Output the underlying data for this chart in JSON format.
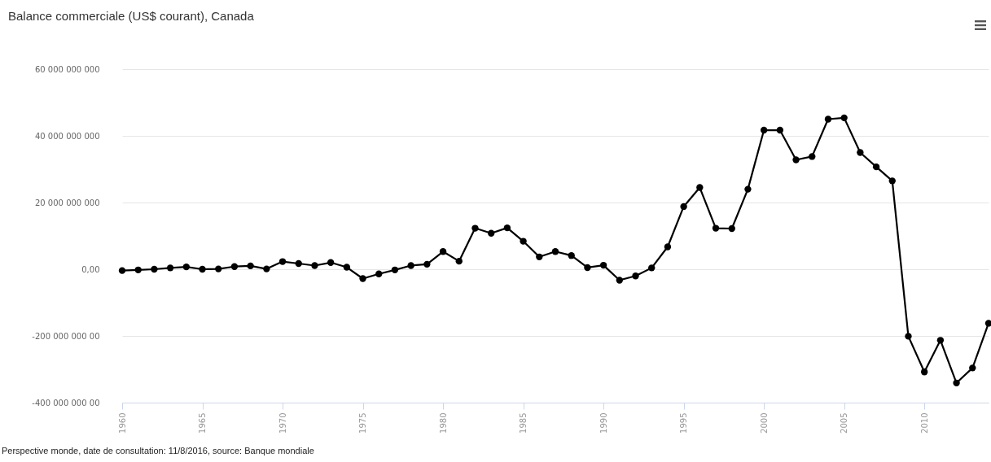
{
  "chart_data": {
    "type": "line",
    "title": "Balance commerciale (US$ courant), Canada",
    "annotations": [
      "Perspective monde, date de consultation: 11/8/2016, source: Banque mondiale"
    ],
    "x": [
      1960,
      1961,
      1962,
      1963,
      1964,
      1965,
      1966,
      1967,
      1968,
      1969,
      1970,
      1971,
      1972,
      1973,
      1974,
      1975,
      1976,
      1977,
      1978,
      1979,
      1980,
      1981,
      1982,
      1983,
      1984,
      1985,
      1986,
      1987,
      1988,
      1989,
      1990,
      1991,
      1992,
      1993,
      1994,
      1995,
      1996,
      1997,
      1998,
      1999,
      2000,
      2001,
      2002,
      2003,
      2004,
      2005,
      2006,
      2007,
      2008,
      2009,
      2010,
      2011,
      2012,
      2013,
      2014
    ],
    "series": [
      {
        "color": "#000000",
        "values": [
          -400000000,
          -200000000,
          0,
          400000000,
          700000000,
          0,
          100000000,
          800000000,
          1000000000,
          100000000,
          2300000000,
          1700000000,
          1100000000,
          2000000000,
          600000000,
          -2800000000,
          -1400000000,
          -200000000,
          1100000000,
          1500000000,
          5300000000,
          2400000000,
          12300000000,
          10800000000,
          12400000000,
          8400000000,
          3700000000,
          5300000000,
          4100000000,
          500000000,
          1200000000,
          -3300000000,
          -2000000000,
          400000000,
          6700000000,
          18800000000,
          24500000000,
          12300000000,
          12200000000,
          24000000000,
          41700000000,
          41700000000,
          32800000000,
          33800000000,
          45000000000,
          45400000000,
          35000000000,
          30700000000,
          26500000000,
          -20100000000,
          -30800000000,
          -21300000000,
          -34100000000,
          -29600000000,
          -16200000000
        ]
      }
    ],
    "xlim": [
      1960,
      2014
    ],
    "xticks": [
      1960,
      1965,
      1970,
      1975,
      1980,
      1985,
      1990,
      1995,
      2000,
      2005,
      2010
    ],
    "ylim": [
      -40000000000,
      60000000000
    ],
    "yticks": [
      {
        "value": -40000000000,
        "label": "-400 000 000 00"
      },
      {
        "value": -20000000000,
        "label": "-200 000 000 00"
      },
      {
        "value": 0,
        "label": "0,00"
      },
      {
        "value": 20000000000,
        "label": "20 000 000 000"
      },
      {
        "value": 40000000000,
        "label": "40 000 000 000"
      },
      {
        "value": 60000000000,
        "label": "60 000 000 000"
      }
    ],
    "grid": "y",
    "legend": false,
    "marker": "circle",
    "line_style": "solid"
  }
}
